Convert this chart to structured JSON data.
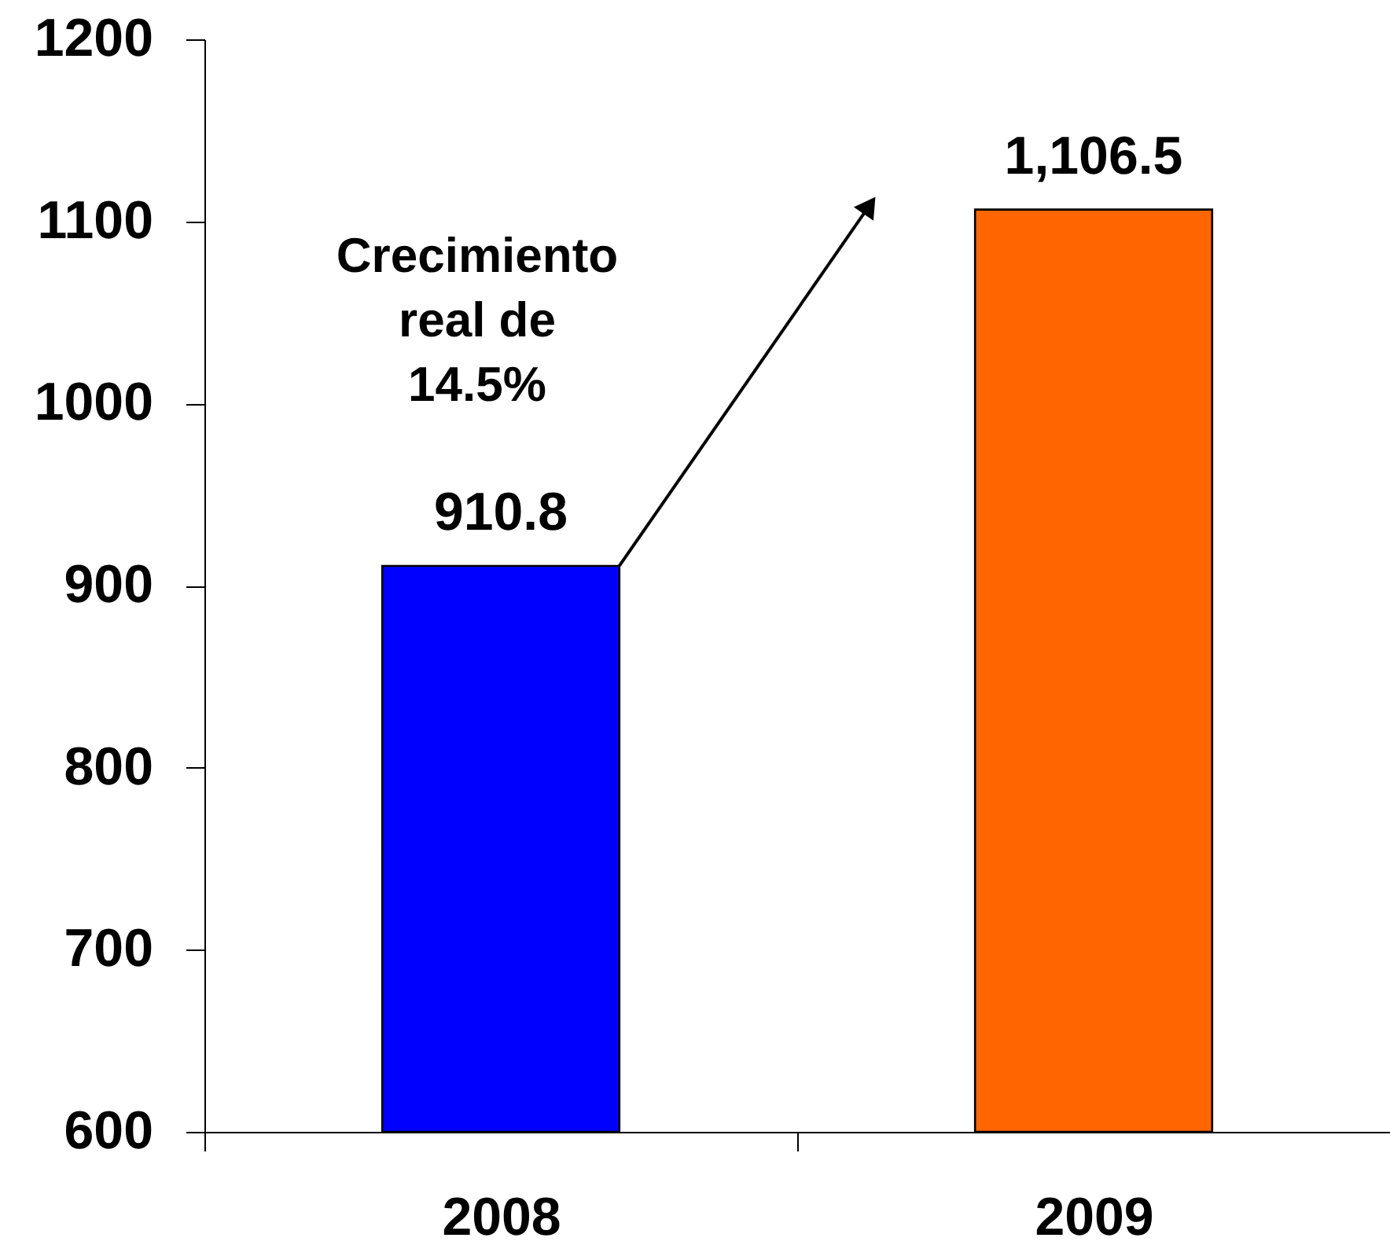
{
  "chart_data": {
    "type": "bar",
    "categories": [
      "2008",
      "2009"
    ],
    "values": [
      910.8,
      1106.5
    ],
    "colors": [
      "#0000ff",
      "#ff6600"
    ],
    "value_labels": [
      "910.8",
      "1,106.5"
    ],
    "ylim": [
      600,
      1200
    ],
    "yticks": [
      600,
      700,
      800,
      900,
      1000,
      1100,
      1200
    ],
    "grid": false,
    "legend": false,
    "annotations": [
      "Crecimiento real de 14.5%"
    ]
  }
}
